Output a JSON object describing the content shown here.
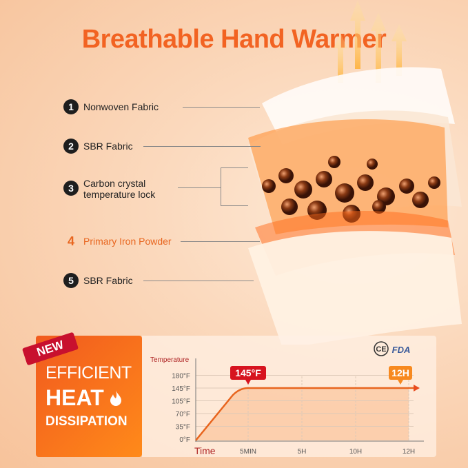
{
  "title": "Breathable Hand Warmer",
  "layers": [
    {
      "num": "1",
      "label": "Nonwoven Fabric"
    },
    {
      "num": "2",
      "label": "SBR Fabric"
    },
    {
      "num": "3",
      "label": "Carbon crystal",
      "label2": "temperature lock"
    },
    {
      "num": "4",
      "label": "Primary Iron Powder"
    },
    {
      "num": "5",
      "label": "SBR Fabric"
    }
  ],
  "badge": {
    "ribbon": "NEW",
    "line1": "EFFICIENT",
    "line2": "HEAT",
    "line3": "DISSIPATION",
    "icon": "flame-icon"
  },
  "certifications": [
    "CE",
    "FDA"
  ],
  "colors": {
    "accent": "#f26322",
    "highlight": "#e8651e",
    "badge_red": "#d7141f",
    "badge_orange": "#f7891f"
  },
  "chart_data": {
    "type": "line",
    "ylabel": "Temperature",
    "xlabel": "Time",
    "y_ticks": [
      "0°F",
      "35°F",
      "70°F",
      "105°F",
      "145°F",
      "180°F"
    ],
    "x_ticks": [
      "5MIN",
      "5H",
      "10H",
      "12H"
    ],
    "series": [
      {
        "points": [
          [
            "0",
            "0°F"
          ],
          [
            "5MIN",
            "145°F"
          ],
          [
            "12H",
            "145°F"
          ]
        ]
      }
    ],
    "annotations": [
      {
        "text": "145°F",
        "at": "5MIN"
      },
      {
        "text": "12H",
        "at": "12H"
      }
    ],
    "grid": true,
    "fill": true
  }
}
